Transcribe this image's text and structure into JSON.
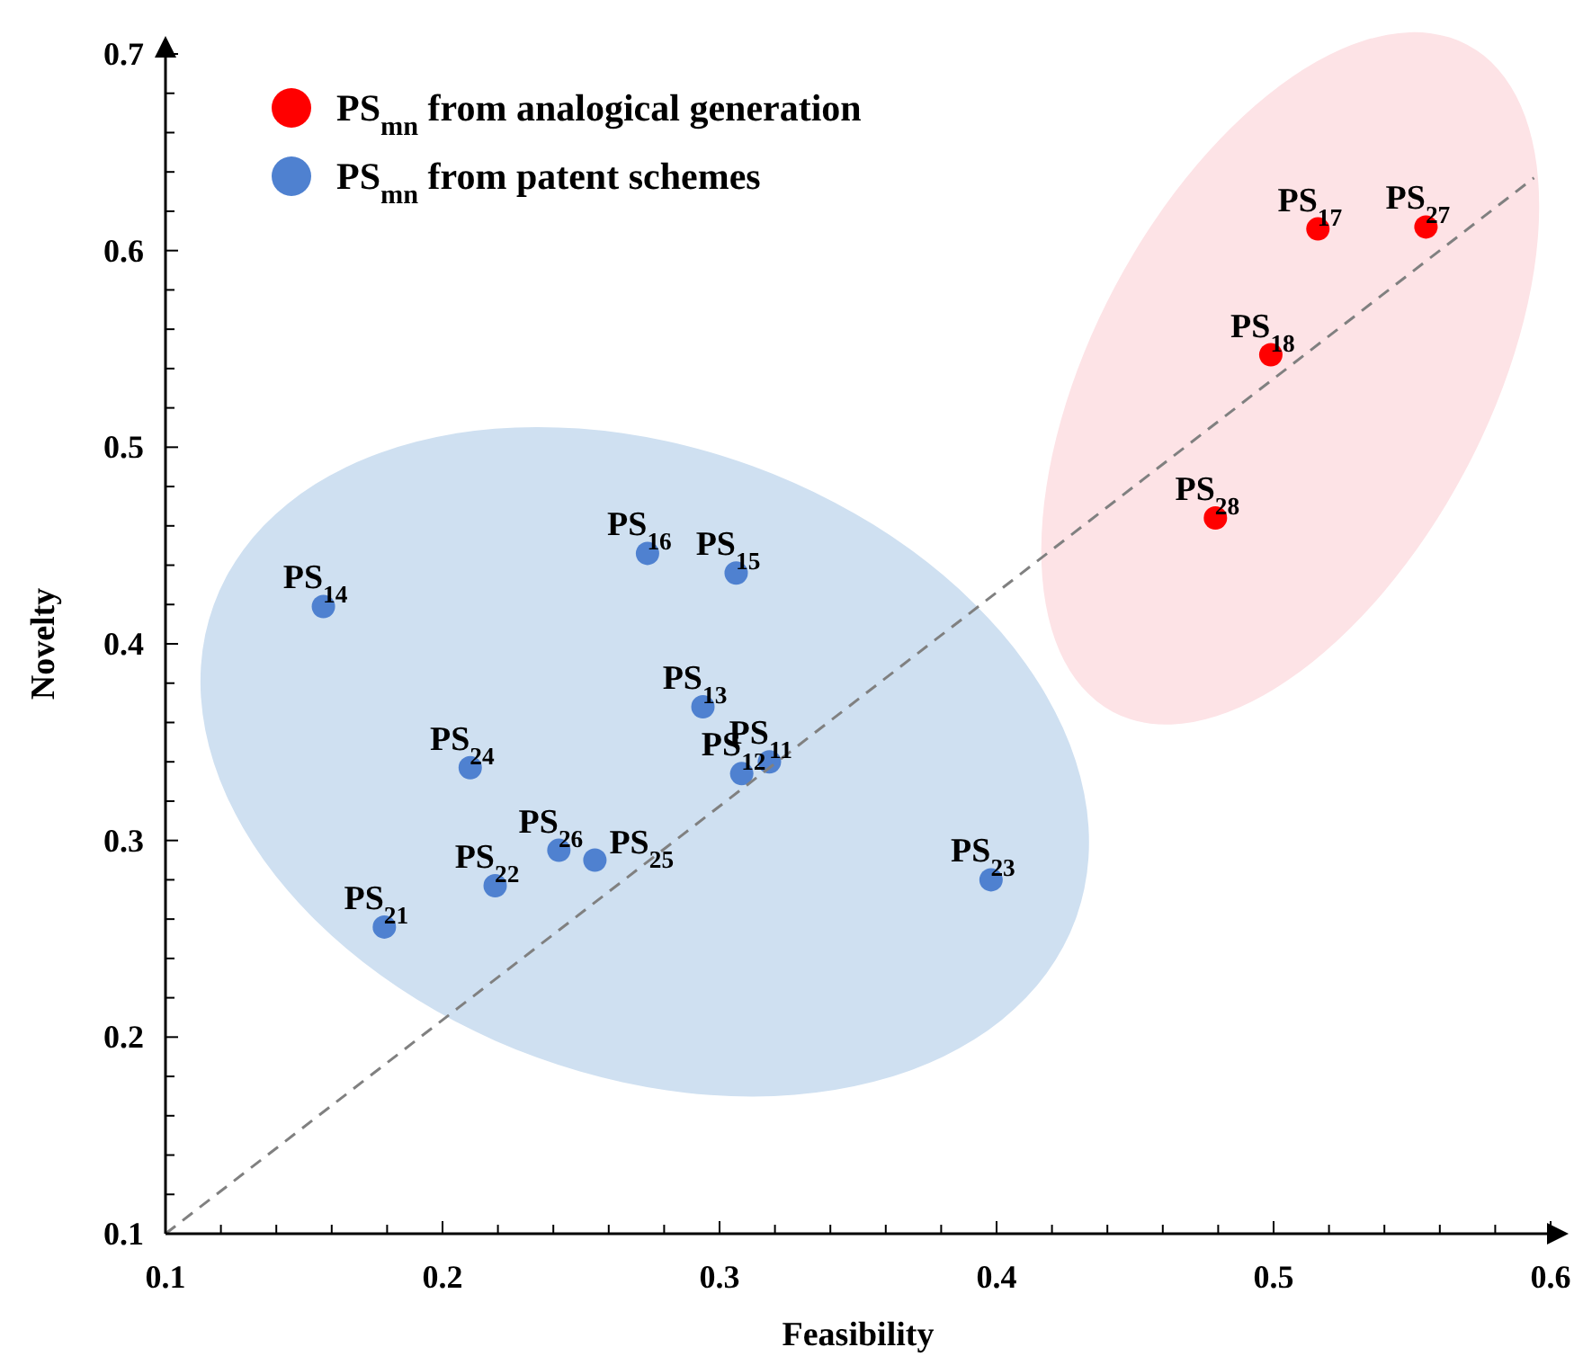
{
  "chart_data": {
    "type": "scatter",
    "xlabel": "Feasibility",
    "ylabel": "Novelty",
    "xlim": [
      0.1,
      0.6
    ],
    "ylim": [
      0.1,
      0.7
    ],
    "xticks": [
      0.1,
      {
        "value": 0.12,
        "label": null
      },
      {
        "value": 0.14,
        "label": null
      },
      {
        "value": 0.16,
        "label": null
      },
      {
        "value": 0.18,
        "label": null
      },
      0.2,
      {
        "value": 0.22,
        "label": null
      },
      {
        "value": 0.24,
        "label": null
      },
      {
        "value": 0.26,
        "label": null
      },
      {
        "value": 0.28,
        "label": null
      },
      0.3,
      {
        "value": 0.32,
        "label": null
      },
      {
        "value": 0.34,
        "label": null
      },
      {
        "value": 0.36,
        "label": null
      },
      {
        "value": 0.38,
        "label": null
      },
      0.4,
      {
        "value": 0.42,
        "label": null
      },
      {
        "value": 0.44,
        "label": null
      },
      {
        "value": 0.46,
        "label": null
      },
      {
        "value": 0.48,
        "label": null
      },
      0.5,
      {
        "value": 0.52,
        "label": null
      },
      {
        "value": 0.54,
        "label": null
      },
      {
        "value": 0.56,
        "label": null
      },
      {
        "value": 0.58,
        "label": null
      },
      0.6
    ],
    "yticks": [
      0.1,
      {
        "value": 0.12,
        "label": null
      },
      {
        "value": 0.14,
        "label": null
      },
      {
        "value": 0.16,
        "label": null
      },
      {
        "value": 0.18,
        "label": null
      },
      0.2,
      {
        "value": 0.22,
        "label": null
      },
      {
        "value": 0.24,
        "label": null
      },
      {
        "value": 0.26,
        "label": null
      },
      {
        "value": 0.28,
        "label": null
      },
      0.3,
      {
        "value": 0.32,
        "label": null
      },
      {
        "value": 0.34,
        "label": null
      },
      {
        "value": 0.36,
        "label": null
      },
      {
        "value": 0.38,
        "label": null
      },
      0.4,
      {
        "value": 0.42,
        "label": null
      },
      {
        "value": 0.44,
        "label": null
      },
      {
        "value": 0.46,
        "label": null
      },
      {
        "value": 0.48,
        "label": null
      },
      0.5,
      {
        "value": 0.52,
        "label": null
      },
      {
        "value": 0.54,
        "label": null
      },
      {
        "value": 0.56,
        "label": null
      },
      {
        "value": 0.58,
        "label": null
      },
      0.6,
      {
        "value": 0.62,
        "label": null
      },
      {
        "value": 0.64,
        "label": null
      },
      {
        "value": 0.66,
        "label": null
      },
      {
        "value": 0.68,
        "label": null
      },
      0.7
    ],
    "grid": false,
    "legend": "top left",
    "marker": "circle",
    "series": [
      {
        "name": "PS$_{mn}$ from analogical generation",
        "color": "#ff0000",
        "x": [
          0.516,
          0.555,
          0.499,
          0.479
        ],
        "values": [
          0.611,
          0.612,
          0.547,
          0.464
        ]
      },
      {
        "name": "PS$_{mn}$ from patent schemes",
        "color": "#4f81d0",
        "x": [
          0.157,
          0.274,
          0.306,
          0.294,
          0.318,
          0.308,
          0.21,
          0.242,
          0.255,
          0.219,
          0.179,
          0.398
        ],
        "values": [
          0.419,
          0.446,
          0.436,
          0.368,
          0.34,
          0.334,
          0.337,
          0.295,
          0.29,
          0.277,
          0.256,
          0.28
        ]
      },
      {
        "type": "line",
        "color": "#808080",
        "line_style": "dashed",
        "marker": "none",
        "x": [
          0.1,
          0.594
        ],
        "values": [
          0.1,
          0.637
        ]
      }
    ],
    "annotations": [
      {
        "text": "PS$_{17}$",
        "x": 0.516,
        "y": 0.611
      },
      {
        "text": "PS$_{27}$",
        "x": 0.555,
        "y": 0.612
      },
      {
        "text": "PS$_{18}$",
        "x": 0.499,
        "y": 0.547
      },
      {
        "text": "PS$_{28}$",
        "x": 0.479,
        "y": 0.464
      },
      {
        "text": "PS$_{14}$",
        "x": 0.157,
        "y": 0.419
      },
      {
        "text": "PS$_{16}$",
        "x": 0.274,
        "y": 0.446
      },
      {
        "text": "PS$_{15}$",
        "x": 0.306,
        "y": 0.436
      },
      {
        "text": "PS$_{13}$",
        "x": 0.294,
        "y": 0.368
      },
      {
        "text": "PS$_{11}$",
        "x": 0.318,
        "y": 0.34
      },
      {
        "text": "PS$_{12}$",
        "x": 0.308,
        "y": 0.334
      },
      {
        "text": "PS$_{24}$",
        "x": 0.21,
        "y": 0.337
      },
      {
        "text": "PS$_{26}$",
        "x": 0.242,
        "y": 0.295
      },
      {
        "text": "PS$_{25}$",
        "x": 0.255,
        "y": 0.29
      },
      {
        "text": "PS$_{22}$",
        "x": 0.219,
        "y": 0.277
      },
      {
        "text": "PS$_{21}$",
        "x": 0.179,
        "y": 0.256
      },
      {
        "text": "PS$_{23}$",
        "x": 0.398,
        "y": 0.28
      }
    ]
  }
}
